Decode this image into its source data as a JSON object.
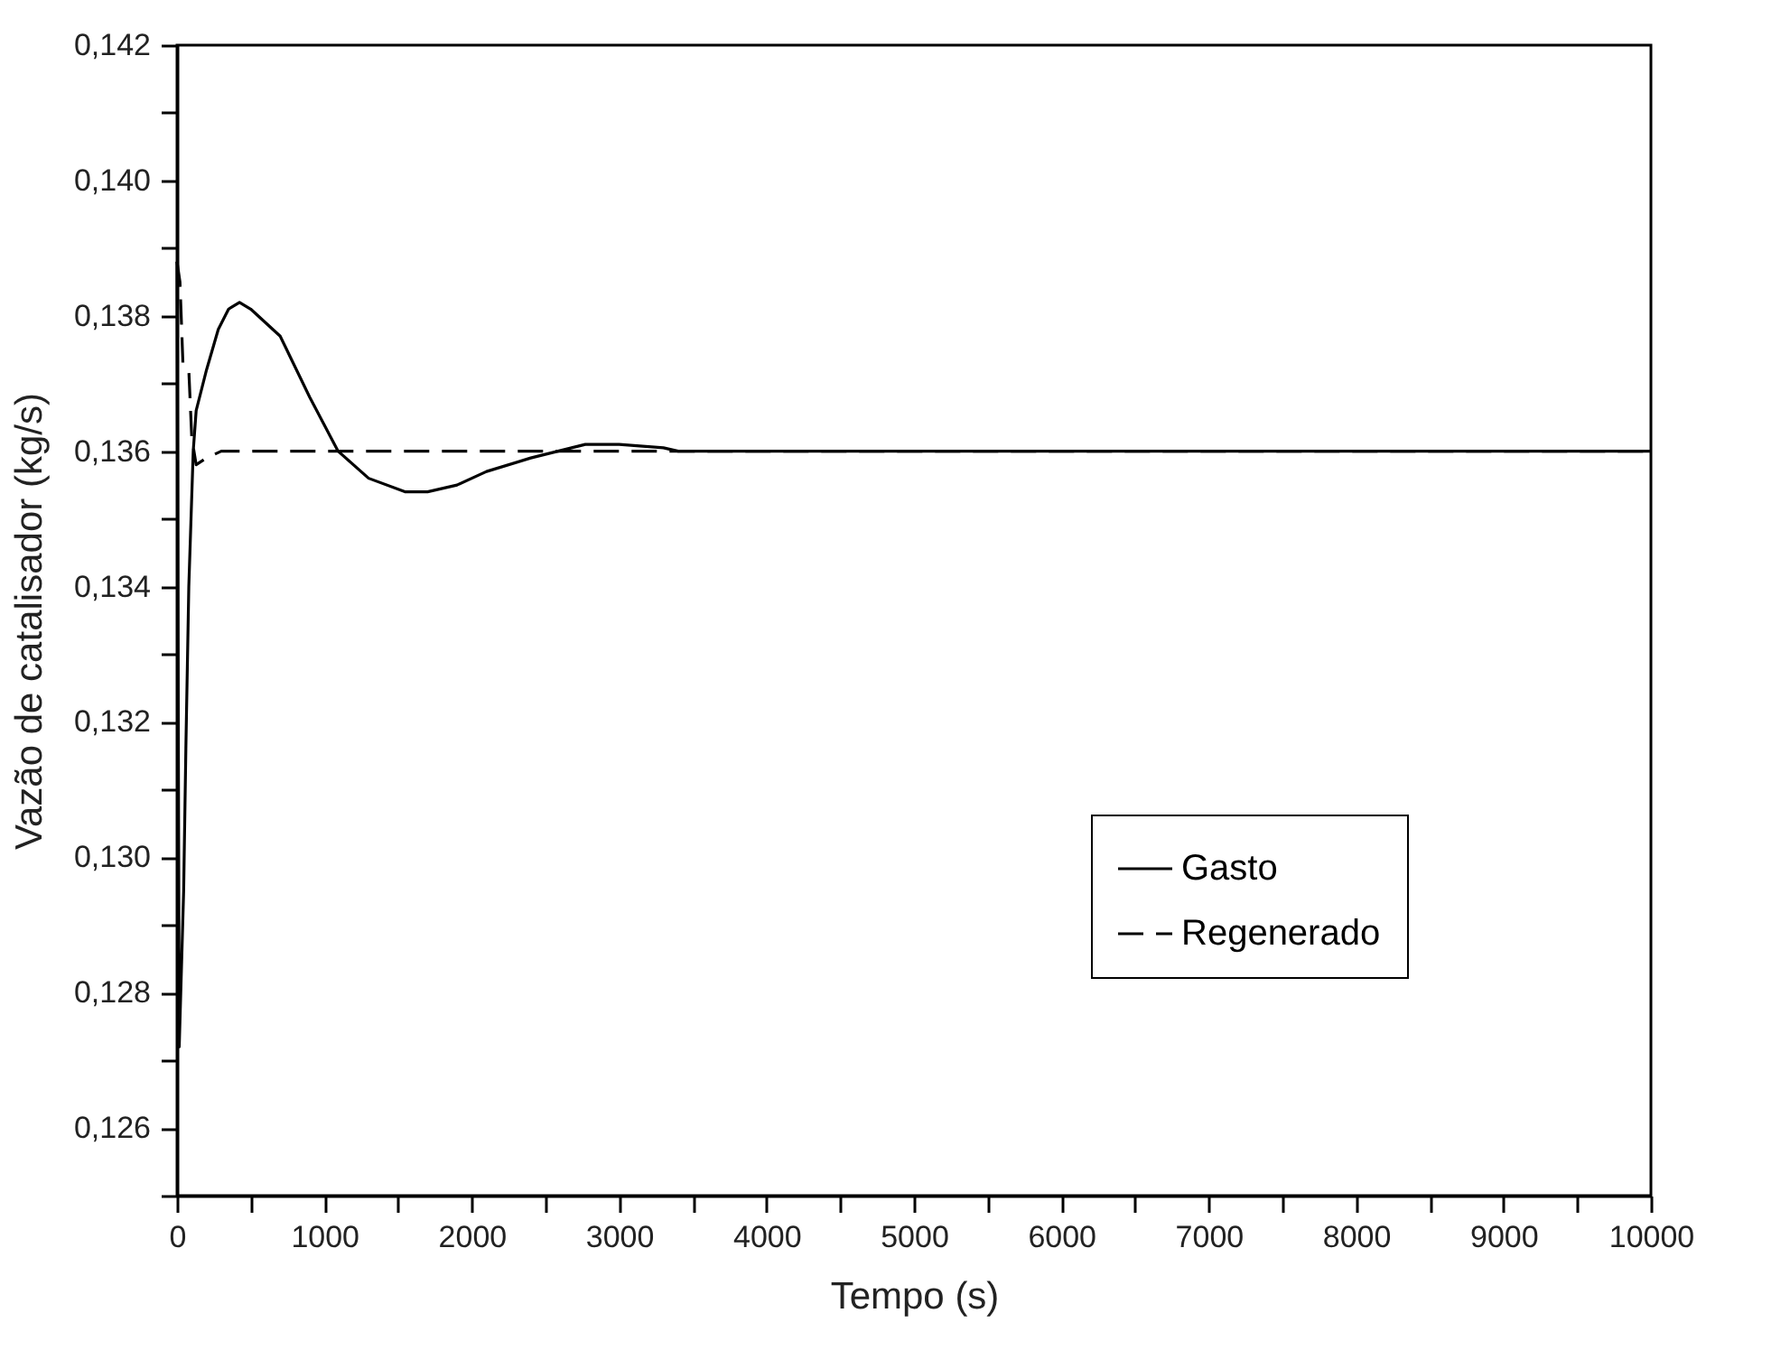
{
  "chart_data": {
    "type": "line",
    "xlabel": "Tempo (s)",
    "ylabel": "Vazão de catalisador (kg/s)",
    "xlim": [
      0,
      10000
    ],
    "xticks": [
      0,
      {
        "value": 500,
        "label": null
      },
      1000,
      {
        "value": 1500,
        "label": null
      },
      2000,
      {
        "value": 2500,
        "label": null
      },
      3000,
      {
        "value": 3500,
        "label": null
      },
      4000,
      {
        "value": 4500,
        "label": null
      },
      5000,
      {
        "value": 5500,
        "label": null
      },
      6000,
      {
        "value": 6500,
        "label": null
      },
      7000,
      {
        "value": 7500,
        "label": null
      },
      8000,
      {
        "value": 8500,
        "label": null
      },
      9000,
      {
        "value": 9500,
        "label": null
      },
      10000
    ],
    "ylim": [
      0.125,
      0.142
    ],
    "yticks": [
      {
        "value": 0.125,
        "label": null
      },
      {
        "value": 0.126,
        "label": "0,126"
      },
      {
        "value": 0.127,
        "label": null
      },
      {
        "value": 0.128,
        "label": "0,128"
      },
      {
        "value": 0.129,
        "label": null
      },
      {
        "value": 0.13,
        "label": "0,130"
      },
      {
        "value": 0.131,
        "label": null
      },
      {
        "value": 0.132,
        "label": "0,132"
      },
      {
        "value": 0.133,
        "label": null
      },
      {
        "value": 0.134,
        "label": "0,134"
      },
      {
        "value": 0.135,
        "label": null
      },
      {
        "value": 0.136,
        "label": "0,136"
      },
      {
        "value": 0.137,
        "label": null
      },
      {
        "value": 0.138,
        "label": "0,138"
      },
      {
        "value": 0.139,
        "label": null
      },
      {
        "value": 0.14,
        "label": "0,140"
      },
      {
        "value": 0.141,
        "label": null
      },
      {
        "value": 0.142,
        "label": "0,142"
      }
    ],
    "grid": false,
    "legend": "right",
    "marker": "none",
    "series": [
      {
        "name": "Gasto",
        "color": "#000000",
        "line_style": "solid",
        "x": [
          0,
          15,
          45,
          60,
          80,
          95,
          110,
          130,
          200,
          280,
          350,
          424,
          500,
          700,
          900,
          1093,
          1300,
          1546,
          1700,
          1900,
          2100,
          2400,
          2770,
          3000,
          3300,
          3400,
          10000
        ],
        "values": [
          0.1388,
          0.1272,
          0.1295,
          0.1316,
          0.134,
          0.135,
          0.136,
          0.1366,
          0.1372,
          0.1378,
          0.1381,
          0.1382,
          0.1381,
          0.1377,
          0.1368,
          0.136,
          0.1356,
          0.1354,
          0.1354,
          0.1355,
          0.1357,
          0.1359,
          0.1361,
          0.1361,
          0.13605,
          0.136,
          0.136
        ]
      },
      {
        "name": "Regenerado",
        "color": "#000000",
        "line_style": "dashed",
        "x": [
          0,
          20,
          40,
          80,
          100,
          130,
          200,
          300,
          10000
        ],
        "values": [
          0.1388,
          0.1385,
          0.1373,
          0.1372,
          0.1362,
          0.1358,
          0.1359,
          0.136,
          0.136
        ]
      }
    ]
  }
}
